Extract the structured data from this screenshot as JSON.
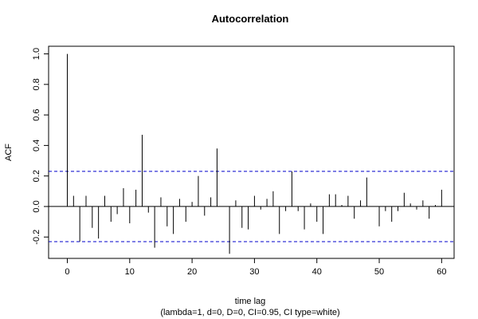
{
  "chart_data": {
    "type": "bar",
    "title": "Autocorrelation",
    "xlabel": "time lag",
    "subtitle": "(lambda=1, d=0, D=0, CI=0.95, CI type=white)",
    "ylabel": "ACF",
    "xlim": [
      -3,
      62
    ],
    "ylim": [
      -0.34,
      1.05
    ],
    "x_ticks": [
      "0",
      "10",
      "20",
      "30",
      "40",
      "50",
      "60"
    ],
    "y_ticks": [
      "-0.2",
      "0.0",
      "0.2",
      "0.4",
      "0.6",
      "0.8",
      "1.0"
    ],
    "ci_upper": 0.23,
    "ci_lower": -0.23,
    "ci_color": "#0000cc",
    "x": [
      0,
      1,
      2,
      3,
      4,
      5,
      6,
      7,
      8,
      9,
      10,
      11,
      12,
      13,
      14,
      15,
      16,
      17,
      18,
      19,
      20,
      21,
      22,
      23,
      24,
      25,
      26,
      27,
      28,
      29,
      30,
      31,
      32,
      33,
      34,
      35,
      36,
      37,
      38,
      39,
      40,
      41,
      42,
      43,
      44,
      45,
      46,
      47,
      48,
      49,
      50,
      51,
      52,
      53,
      54,
      55,
      56,
      57,
      58,
      59,
      60
    ],
    "values": [
      1.0,
      0.07,
      -0.23,
      0.07,
      -0.14,
      -0.21,
      0.07,
      -0.1,
      -0.05,
      0.12,
      -0.11,
      0.11,
      0.47,
      -0.04,
      -0.27,
      0.06,
      -0.13,
      -0.18,
      0.05,
      -0.1,
      0.03,
      0.2,
      -0.06,
      0.06,
      0.38,
      0.0,
      -0.31,
      0.04,
      -0.14,
      -0.15,
      0.07,
      -0.02,
      0.05,
      0.1,
      -0.18,
      -0.03,
      0.23,
      -0.03,
      -0.15,
      0.02,
      -0.1,
      -0.18,
      0.08,
      0.08,
      0.01,
      0.07,
      -0.08,
      0.04,
      0.19,
      0.0,
      -0.13,
      -0.03,
      -0.1,
      -0.03,
      0.09,
      0.02,
      -0.02,
      0.04,
      -0.08,
      0.01,
      0.11
    ]
  }
}
